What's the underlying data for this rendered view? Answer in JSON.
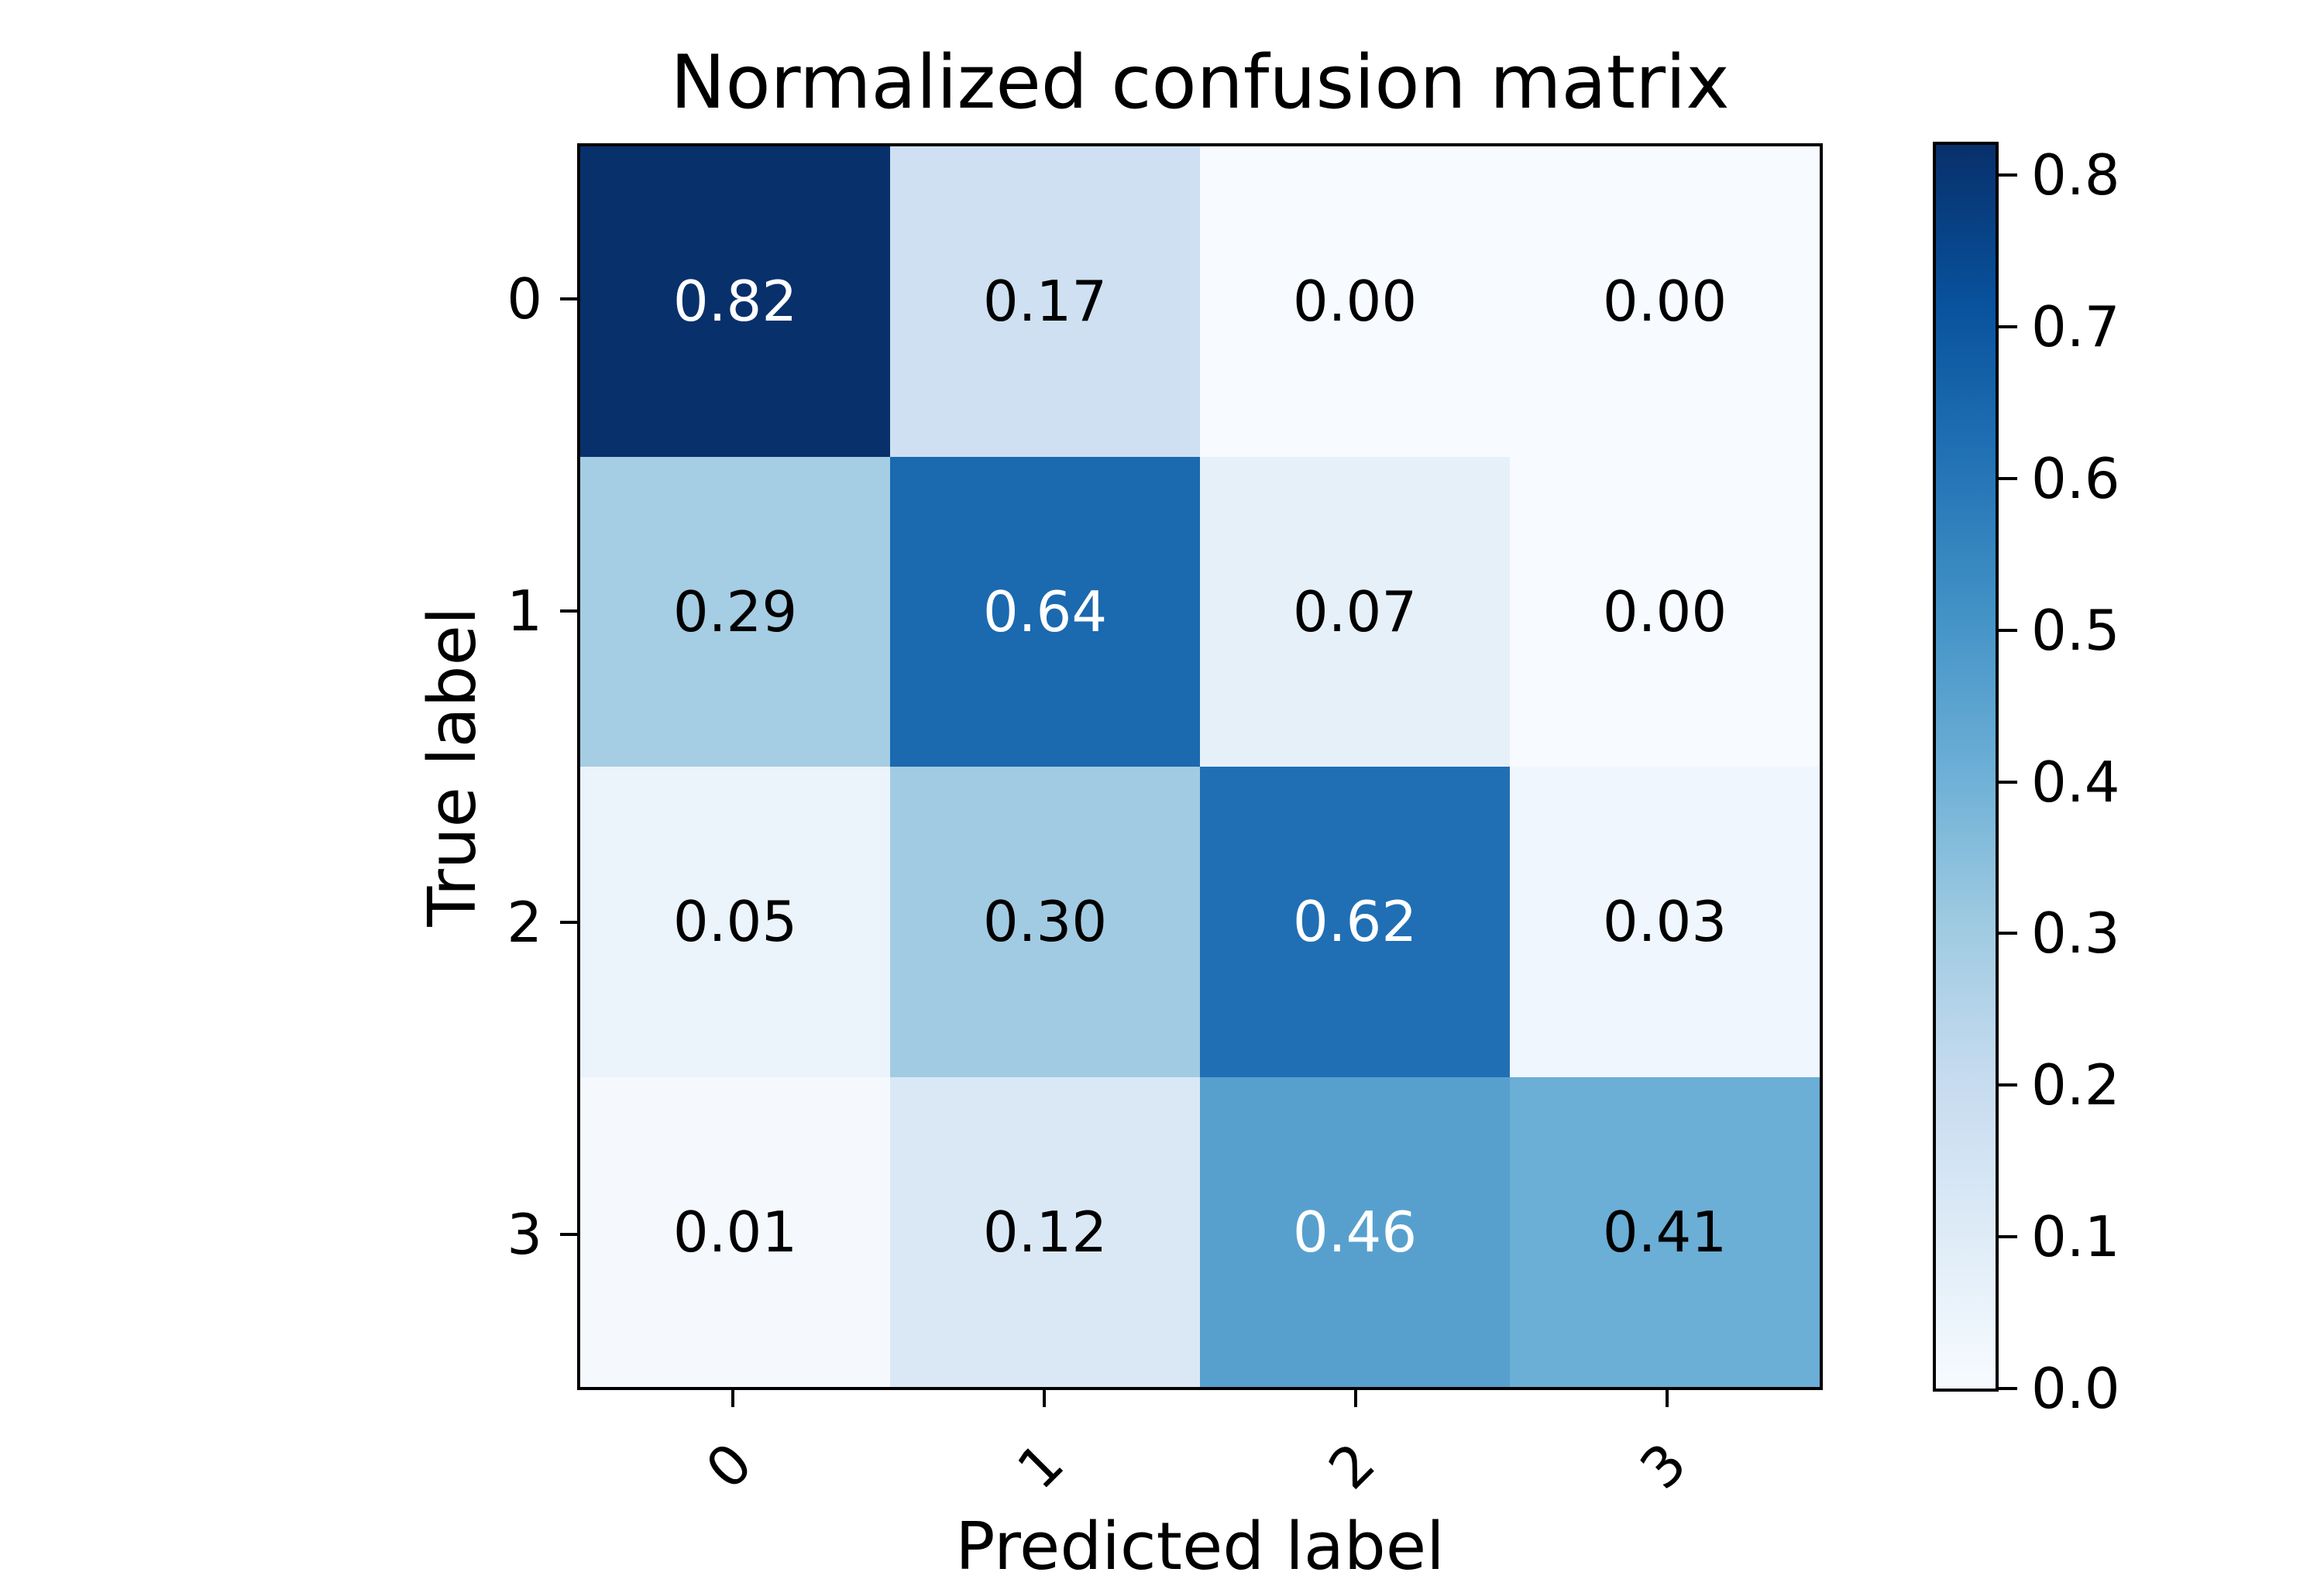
{
  "title": "Normalized confusion matrix",
  "axes": {
    "xlabel": "Predicted label",
    "ylabel": "True label",
    "x_ticks": [
      "0",
      "1",
      "2",
      "3"
    ],
    "y_ticks": [
      "0",
      "1",
      "2",
      "3"
    ]
  },
  "colorbar": {
    "tick_labels": [
      "0.0",
      "0.1",
      "0.2",
      "0.3",
      "0.4",
      "0.5",
      "0.6",
      "0.7",
      "0.8"
    ],
    "tick_values": [
      0.0,
      0.1,
      0.2,
      0.3,
      0.4,
      0.5,
      0.6,
      0.7,
      0.8
    ],
    "vmin": 0.0,
    "vmax": 0.82,
    "gradient_stops": [
      "#f7fbff",
      "#deebf7",
      "#c6dbef",
      "#9ecae1",
      "#6baed6",
      "#4292c6",
      "#2171b5",
      "#08519c",
      "#08306b"
    ]
  },
  "colors": {
    "background": "#ffffff",
    "spine": "#000000",
    "darkest_cell": "#08306b",
    "lightest_cell": "#f7fbff"
  },
  "chart_data": {
    "type": "heatmap",
    "title": "Normalized confusion matrix",
    "xlabel": "Predicted label",
    "ylabel": "True label",
    "x_categories": [
      "0",
      "1",
      "2",
      "3"
    ],
    "y_categories": [
      "0",
      "1",
      "2",
      "3"
    ],
    "matrix": [
      [
        0.82,
        0.17,
        0.0,
        0.0
      ],
      [
        0.29,
        0.64,
        0.07,
        0.0
      ],
      [
        0.05,
        0.3,
        0.62,
        0.03
      ],
      [
        0.01,
        0.12,
        0.46,
        0.41
      ]
    ],
    "cell_labels": [
      [
        "0.82",
        "0.17",
        "0.00",
        "0.00"
      ],
      [
        "0.29",
        "0.64",
        "0.07",
        "0.00"
      ],
      [
        "0.05",
        "0.30",
        "0.62",
        "0.03"
      ],
      [
        "0.01",
        "0.12",
        "0.46",
        "0.41"
      ]
    ],
    "cell_colors": [
      [
        "#08306b",
        "#cee0f1",
        "#f7fbff",
        "#f7fbff"
      ],
      [
        "#a5cde3",
        "#1b69af",
        "#e6f0f9",
        "#f7fbff"
      ],
      [
        "#ebf3fb",
        "#a1cbe2",
        "#206fb4",
        "#f0f6fd"
      ],
      [
        "#f5f9fe",
        "#dae8f6",
        "#57a0ce",
        "#6baed6"
      ]
    ],
    "cell_text_colors": [
      [
        "#ffffff",
        "#000000",
        "#000000",
        "#000000"
      ],
      [
        "#000000",
        "#ffffff",
        "#000000",
        "#000000"
      ],
      [
        "#000000",
        "#000000",
        "#ffffff",
        "#000000"
      ],
      [
        "#000000",
        "#000000",
        "#ffffff",
        "#000000"
      ]
    ],
    "colormap": "Blues",
    "vmin": 0,
    "vmax": 0.82,
    "colorbar_position": "right",
    "x_tick_rotation_deg": 45
  }
}
